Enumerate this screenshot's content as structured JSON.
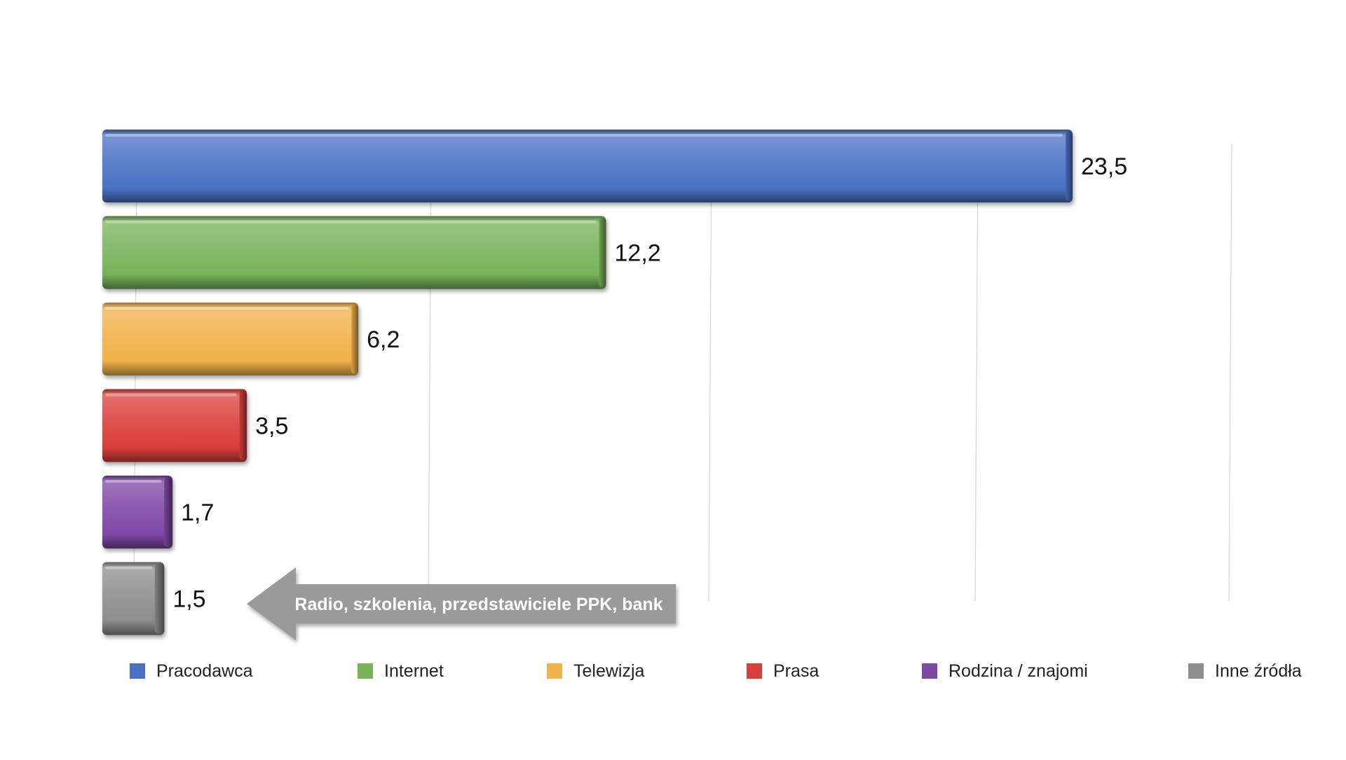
{
  "chart_data": {
    "type": "bar",
    "orientation": "horizontal",
    "categories": [
      "Pracodawca",
      "Internet",
      "Telewizja",
      "Prasa",
      "Rodzina / znajomi",
      "Inne źródła"
    ],
    "values": [
      23.5,
      12.2,
      6.2,
      3.5,
      1.7,
      1.5
    ],
    "value_labels": [
      "23,5",
      "12,2",
      "6,2",
      "3,5",
      "1,7",
      "1,5"
    ],
    "colors": [
      "#4a72c4",
      "#77b35a",
      "#f0b24a",
      "#d93f3b",
      "#8047a6",
      "#8e8e8e"
    ],
    "title": "",
    "xlabel": "",
    "ylabel": "",
    "xlim": [
      0,
      28
    ],
    "grid": true,
    "legend_position": "bottom",
    "annotation": {
      "text": "Radio, szkolenia, przedstawiciele PPK, bank",
      "target_category": "Inne źródła",
      "color": "#9a9a9a"
    }
  }
}
